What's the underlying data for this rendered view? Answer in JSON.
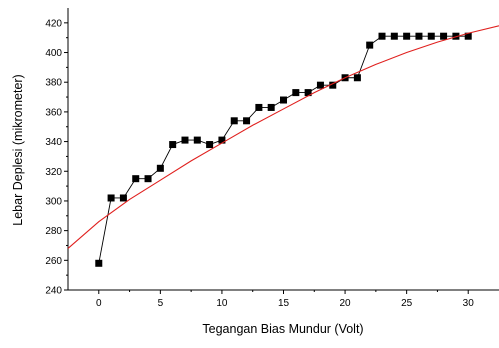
{
  "chart_data": {
    "type": "scatter",
    "title": "",
    "xlabel": "Tegangan Bias Mundur (Volt)",
    "ylabel": "Lebar Deplesi (mikrometer)",
    "xlim": [
      -2.5,
      32.5
    ],
    "ylim": [
      240,
      430
    ],
    "xticks": [
      0,
      5,
      10,
      15,
      20,
      25,
      30
    ],
    "yticks": [
      240,
      260,
      280,
      300,
      320,
      340,
      360,
      380,
      400,
      420
    ],
    "grid": false,
    "legend": "none",
    "series": [
      {
        "style": "line-marker",
        "marker": "square",
        "color": "#000000",
        "x": [
          0,
          1,
          2,
          3,
          4,
          5,
          6,
          7,
          8,
          9,
          10,
          11,
          12,
          13,
          14,
          15,
          16,
          17,
          18,
          19,
          20,
          21,
          22,
          23,
          24,
          25,
          26,
          27,
          28,
          29,
          30
        ],
        "y": [
          258,
          302,
          302,
          315,
          315,
          322,
          338,
          341,
          341,
          338,
          341,
          354,
          354,
          363,
          363,
          368,
          373,
          373,
          378,
          378,
          383,
          383,
          405,
          411,
          411,
          411,
          411,
          411,
          411,
          411,
          411
        ]
      },
      {
        "style": "line",
        "color": "#e0201e",
        "x": [
          -2.5,
          0,
          2.5,
          5,
          7.5,
          10,
          12.5,
          15,
          17.5,
          20,
          22.5,
          25,
          27.5,
          30,
          32.5
        ],
        "y": [
          268,
          286,
          301,
          314,
          327,
          339,
          351,
          362,
          373,
          383,
          392,
          400,
          407,
          413,
          418
        ]
      }
    ]
  }
}
